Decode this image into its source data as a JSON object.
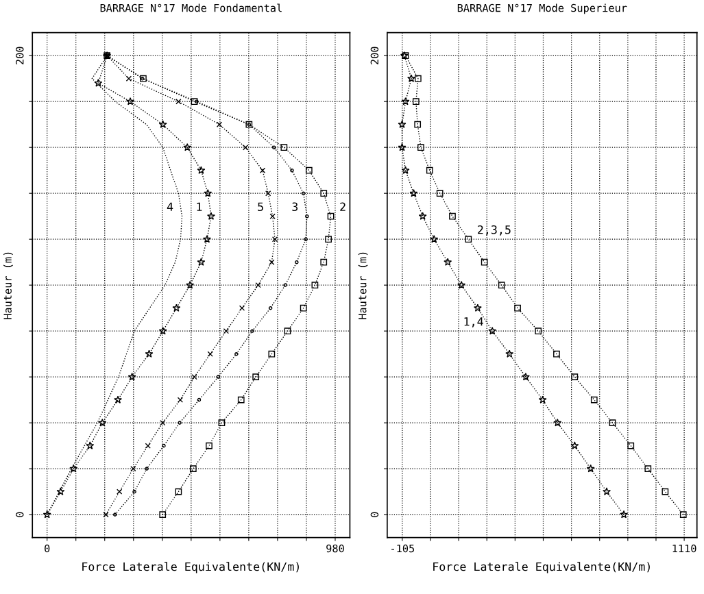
{
  "chart_data": [
    {
      "type": "line",
      "title": "BARRAGE N°17 Mode Fondamental",
      "xlabel": "Force Laterale Equivalente(KN/m)",
      "ylabel": "Hauteur (m)",
      "xlim": [
        -50,
        1030
      ],
      "ylim": [
        -10,
        210
      ],
      "xticks": [
        0,
        {
          "value": 98,
          "label": null
        },
        {
          "value": 196,
          "label": null
        },
        {
          "value": 294,
          "label": null
        },
        {
          "value": 392,
          "label": null
        },
        {
          "value": 490,
          "label": null
        },
        {
          "value": 588,
          "label": null
        },
        {
          "value": 686,
          "label": null
        },
        {
          "value": 784,
          "label": null
        },
        {
          "value": 882,
          "label": null
        },
        980
      ],
      "yticks": [
        0,
        {
          "value": 20,
          "label": null
        },
        {
          "value": 40,
          "label": null
        },
        {
          "value": 60,
          "label": null
        },
        {
          "value": 80,
          "label": null
        },
        {
          "value": 100,
          "label": null
        },
        {
          "value": 120,
          "label": null
        },
        {
          "value": 140,
          "label": null
        },
        {
          "value": 160,
          "label": null
        },
        {
          "value": 180,
          "label": null
        },
        200
      ],
      "grid": true,
      "line_style": "dotted",
      "series": [
        {
          "color": "#000000",
          "marker": "none",
          "x": [
            0,
            83,
            171,
            243,
            297,
            401,
            436,
            454,
            459,
            447,
            420,
            394,
            338,
            232,
            153,
            204
          ],
          "values": [
            0,
            20,
            40,
            60,
            80,
            100,
            110,
            120,
            130,
            140,
            150,
            160,
            170,
            180,
            190,
            200
          ]
        },
        {
          "color": "#000000",
          "marker": "star",
          "x": [
            0,
            46,
            90,
            146,
            188,
            241,
            289,
            347,
            394,
            440,
            486,
            524,
            544,
            558,
            547,
            524,
            477,
            394,
            283,
            174,
            204
          ],
          "values": [
            0,
            10,
            20,
            30,
            40,
            50,
            60,
            70,
            80,
            90,
            100,
            110,
            120,
            130,
            140,
            150,
            160,
            170,
            180,
            188,
            200
          ]
        },
        {
          "color": "#000000",
          "marker": "cross",
          "x": [
            200,
            246,
            293,
            343,
            393,
            453,
            501,
            555,
            609,
            663,
            718,
            764,
            775,
            767,
            752,
            733,
            675,
            586,
            447,
            278,
            204
          ],
          "values": [
            0,
            10,
            20,
            30,
            40,
            50,
            60,
            70,
            80,
            90,
            100,
            110,
            120,
            130,
            140,
            150,
            160,
            170,
            180,
            190,
            200
          ]
        },
        {
          "color": "#000000",
          "marker": "circle",
          "x": [
            231,
            297,
            339,
            397,
            451,
            517,
            582,
            644,
            698,
            760,
            810,
            849,
            880,
            884,
            872,
            833,
            772,
            687,
            509,
            324,
            204
          ],
          "values": [
            0,
            10,
            20,
            30,
            40,
            50,
            60,
            70,
            80,
            90,
            100,
            110,
            120,
            130,
            140,
            150,
            160,
            170,
            180,
            190,
            200
          ]
        },
        {
          "color": "#000000",
          "marker": "square",
          "x": [
            393,
            447,
            497,
            551,
            594,
            660,
            710,
            764,
            818,
            872,
            911,
            941,
            957,
            965,
            941,
            891,
            806,
            687,
            501,
            327,
            204
          ],
          "values": [
            0,
            10,
            20,
            30,
            40,
            50,
            60,
            70,
            80,
            90,
            100,
            110,
            120,
            130,
            140,
            150,
            160,
            170,
            180,
            190,
            200
          ]
        }
      ],
      "annotations": [
        {
          "text": "4",
          "x": 459,
          "y": 130
        },
        {
          "text": "1",
          "x": 558,
          "y": 130
        },
        {
          "text": "5",
          "x": 767,
          "y": 130
        },
        {
          "text": "3",
          "x": 884,
          "y": 130
        },
        {
          "text": "2",
          "x": 965,
          "y": 130
        }
      ]
    },
    {
      "type": "line",
      "title": "BARRAGE N°17 Mode Superieur",
      "xlabel": "Force Laterale Equivalente(KN/m)",
      "ylabel": "Hauteur (m)",
      "xlim": [
        -170,
        1165
      ],
      "ylim": [
        -10,
        210
      ],
      "xticks": [
        -105,
        {
          "value": 16.5,
          "label": null
        },
        {
          "value": 138,
          "label": null
        },
        {
          "value": 259.5,
          "label": null
        },
        {
          "value": 381,
          "label": null
        },
        {
          "value": 502.5,
          "label": null
        },
        {
          "value": 624,
          "label": null
        },
        {
          "value": 745.5,
          "label": null
        },
        {
          "value": 867,
          "label": null
        },
        {
          "value": 988.5,
          "label": null
        },
        1110
      ],
      "yticks": [
        0,
        {
          "value": 20,
          "label": null
        },
        {
          "value": 40,
          "label": null
        },
        {
          "value": 60,
          "label": null
        },
        {
          "value": 80,
          "label": null
        },
        {
          "value": 100,
          "label": null
        },
        {
          "value": 120,
          "label": null
        },
        {
          "value": 140,
          "label": null
        },
        {
          "value": 160,
          "label": null
        },
        {
          "value": 180,
          "label": null
        },
        200
      ],
      "grid": true,
      "line_style": "dotted",
      "series": [
        {
          "color": "#000000",
          "marker": "star",
          "x": [
            850,
            776,
            707,
            638,
            564,
            500,
            427,
            357,
            283,
            220,
            150,
            91,
            32,
            -17,
            -56,
            -91,
            -106,
            -106,
            -91,
            -66,
            -96
          ],
          "values": [
            0,
            10,
            20,
            30,
            40,
            50,
            60,
            70,
            80,
            90,
            100,
            110,
            120,
            130,
            140,
            150,
            160,
            170,
            180,
            190,
            200
          ]
        },
        {
          "color": "#000000",
          "marker": "square",
          "x": [
            1106,
            1028,
            954,
            880,
            801,
            722,
            638,
            560,
            481,
            392,
            323,
            249,
            180,
            111,
            57,
            13,
            -25,
            -39,
            -46,
            -37,
            -91
          ],
          "values": [
            0,
            10,
            20,
            30,
            40,
            50,
            60,
            70,
            80,
            90,
            100,
            110,
            120,
            130,
            140,
            150,
            160,
            170,
            180,
            190,
            200
          ]
        }
      ],
      "annotations": [
        {
          "text": "2,3,5",
          "x": 180,
          "y": 120
        },
        {
          "text": "1,4",
          "x": 283,
          "y": 80
        }
      ]
    }
  ]
}
